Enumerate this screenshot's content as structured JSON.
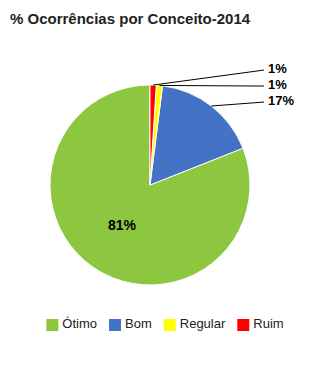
{
  "chart_data": {
    "type": "pie",
    "title": "% Ocorrências por Conceito-2014",
    "categories": [
      "Ótimo",
      "Bom",
      "Regular",
      "Ruim"
    ],
    "values": [
      81,
      17,
      1,
      1
    ],
    "value_labels": [
      "81%",
      "17%",
      "1%",
      "1%"
    ],
    "colors": [
      "#8dc63f",
      "#4472c4",
      "#ffff00",
      "#ff0000"
    ],
    "data_labels": true,
    "legend": "bottom"
  }
}
